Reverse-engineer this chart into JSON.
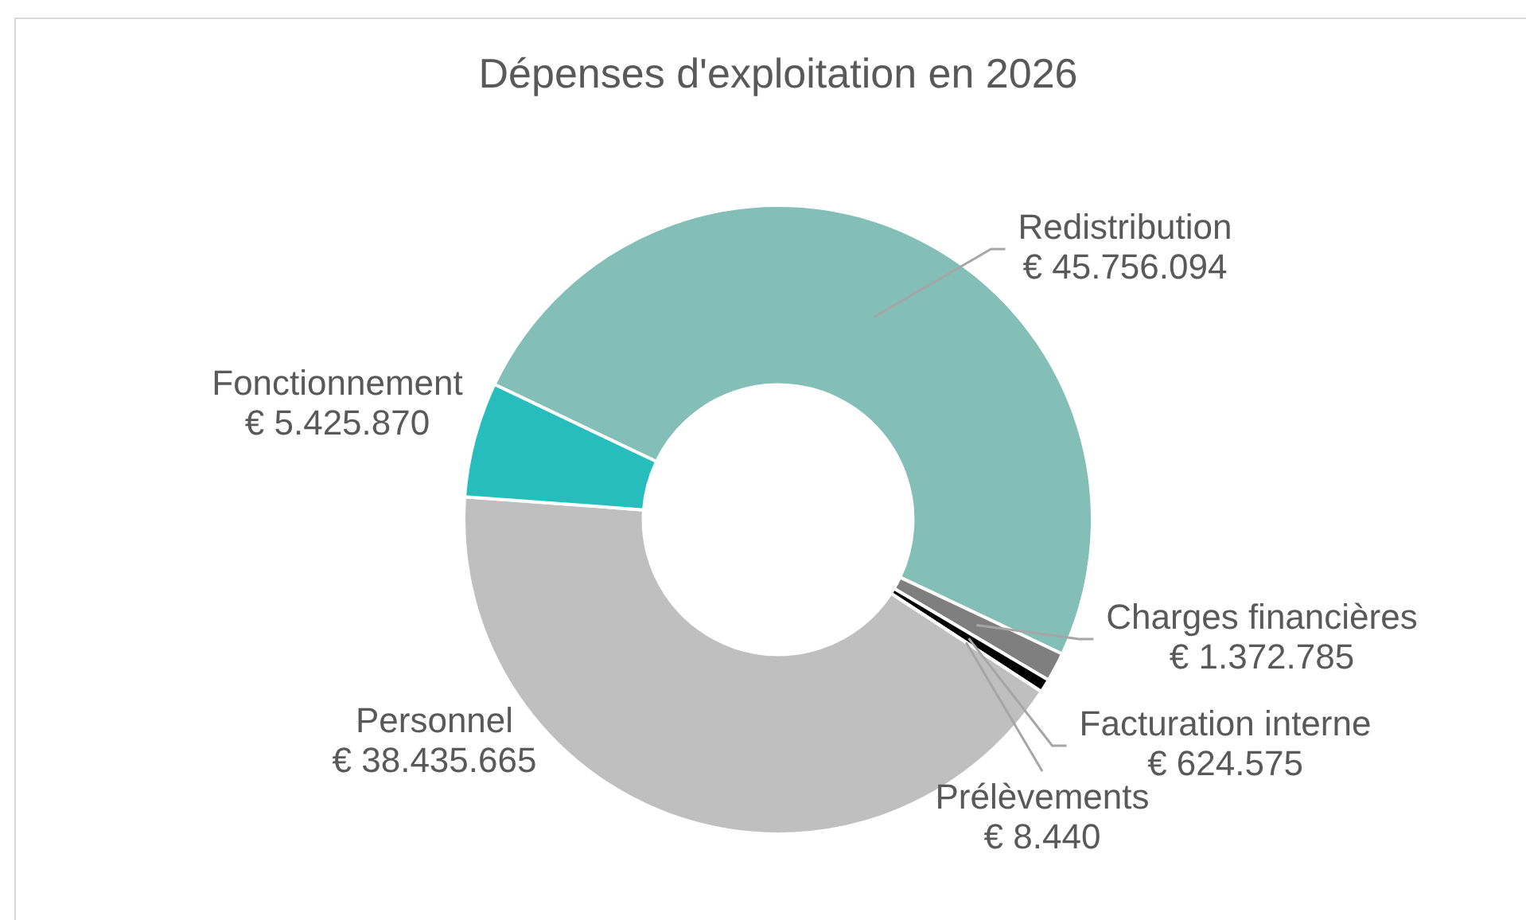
{
  "chart_data": {
    "type": "donut",
    "title": "Dépenses d'exploitation en 2026",
    "categories": [
      "Redistribution",
      "Charges financières",
      "Facturation interne",
      "Prélèvements",
      "Personnel",
      "Fonctionnement"
    ],
    "values": [
      45756094,
      1372785,
      624575,
      8440,
      38435665,
      5425870
    ],
    "colors": [
      "#83bfb7",
      "#7f7f7f",
      "#000000",
      "#404040",
      "#bfbfbf",
      "#28bdbd"
    ],
    "value_labels": [
      "€ 45.756.094",
      "€ 1.372.785",
      "€ 624.575",
      "€ 8.440",
      "€ 38.435.665",
      "€ 5.425.870"
    ],
    "legend": false
  }
}
